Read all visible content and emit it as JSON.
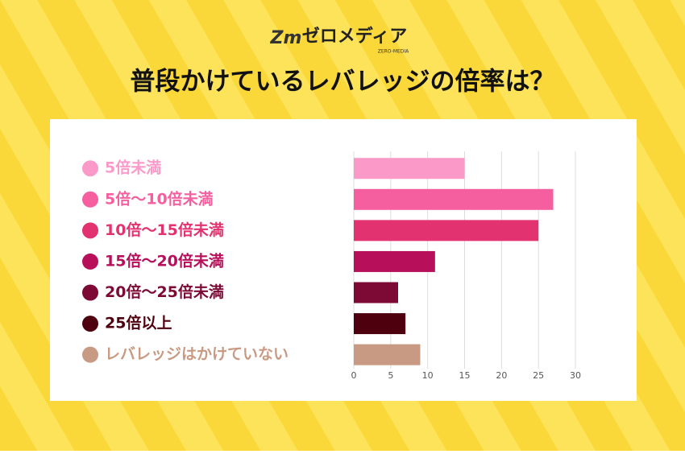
{
  "logo": {
    "mark": "Zm",
    "name": "ゼロメディア",
    "sub": "ZERO-MEDIA"
  },
  "chart_data": {
    "type": "bar",
    "orientation": "horizontal",
    "title": "普段かけているレバレッジの倍率は？",
    "categories": [
      "5倍未満",
      "5倍〜10倍未満",
      "10倍〜15倍未満",
      "15倍〜20倍未満",
      "20倍〜25倍未満",
      "25倍以上",
      "レバレッジはかけていない"
    ],
    "values": [
      15,
      27,
      25,
      11,
      6,
      7,
      9
    ],
    "colors": [
      "#fb9ac9",
      "#f65f9f",
      "#e2326f",
      "#b70f5a",
      "#7c0a35",
      "#4f000f",
      "#c99a83"
    ],
    "xlim": [
      0,
      30
    ],
    "xticks": [
      0,
      5,
      10,
      15,
      20,
      25,
      30
    ],
    "grid": true
  }
}
